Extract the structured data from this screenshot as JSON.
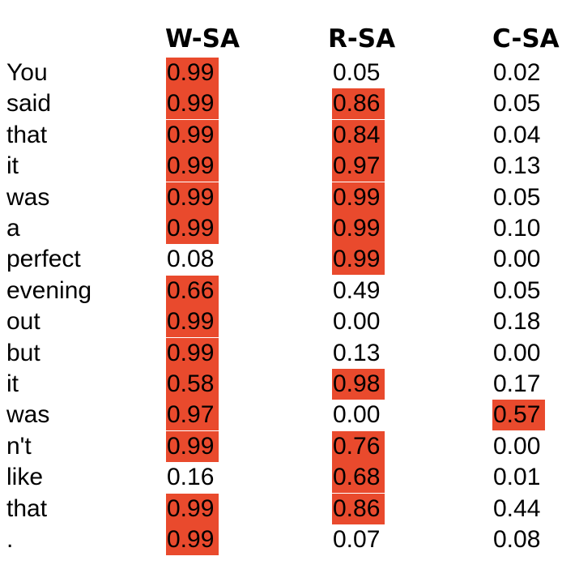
{
  "headers": [
    "W-SA",
    "R-SA",
    "C-SA"
  ],
  "highlight_color": "#e94a2d",
  "rows": [
    {
      "token": "You",
      "w": "0.99",
      "r": "0.05",
      "c": "0.02",
      "w_hl": true,
      "r_hl": false,
      "c_hl": false
    },
    {
      "token": "said",
      "w": "0.99",
      "r": "0.86",
      "c": "0.05",
      "w_hl": true,
      "r_hl": true,
      "c_hl": false
    },
    {
      "token": "that",
      "w": "0.99",
      "r": "0.84",
      "c": "0.04",
      "w_hl": true,
      "r_hl": true,
      "c_hl": false
    },
    {
      "token": "it",
      "w": "0.99",
      "r": "0.97",
      "c": "0.13",
      "w_hl": true,
      "r_hl": true,
      "c_hl": false
    },
    {
      "token": "was",
      "w": "0.99",
      "r": "0.99",
      "c": "0.05",
      "w_hl": true,
      "r_hl": true,
      "c_hl": false
    },
    {
      "token": "a",
      "w": "0.99",
      "r": "0.99",
      "c": "0.10",
      "w_hl": true,
      "r_hl": true,
      "c_hl": false
    },
    {
      "token": "perfect",
      "w": "0.08",
      "r": "0.99",
      "c": "0.00",
      "w_hl": false,
      "r_hl": true,
      "c_hl": false
    },
    {
      "token": "evening",
      "w": "0.66",
      "r": "0.49",
      "c": "0.05",
      "w_hl": true,
      "r_hl": false,
      "c_hl": false
    },
    {
      "token": "out",
      "w": "0.99",
      "r": "0.00",
      "c": "0.18",
      "w_hl": true,
      "r_hl": false,
      "c_hl": false
    },
    {
      "token": "but",
      "w": "0.99",
      "r": "0.13",
      "c": "0.00",
      "w_hl": true,
      "r_hl": false,
      "c_hl": false
    },
    {
      "token": "it",
      "w": "0.58",
      "r": "0.98",
      "c": "0.17",
      "w_hl": true,
      "r_hl": true,
      "c_hl": false
    },
    {
      "token": "was",
      "w": "0.97",
      "r": "0.00",
      "c": "0.57",
      "w_hl": true,
      "r_hl": false,
      "c_hl": true
    },
    {
      "token": "n't",
      "w": "0.99",
      "r": "0.76",
      "c": "0.00",
      "w_hl": true,
      "r_hl": true,
      "c_hl": false
    },
    {
      "token": "like",
      "w": "0.16",
      "r": "0.68",
      "c": "0.01",
      "w_hl": false,
      "r_hl": true,
      "c_hl": false
    },
    {
      "token": "that",
      "w": "0.99",
      "r": "0.86",
      "c": "0.44",
      "w_hl": true,
      "r_hl": true,
      "c_hl": false
    },
    {
      "token": ".",
      "w": "0.99",
      "r": "0.07",
      "c": "0.08",
      "w_hl": true,
      "r_hl": false,
      "c_hl": false
    }
  ]
}
